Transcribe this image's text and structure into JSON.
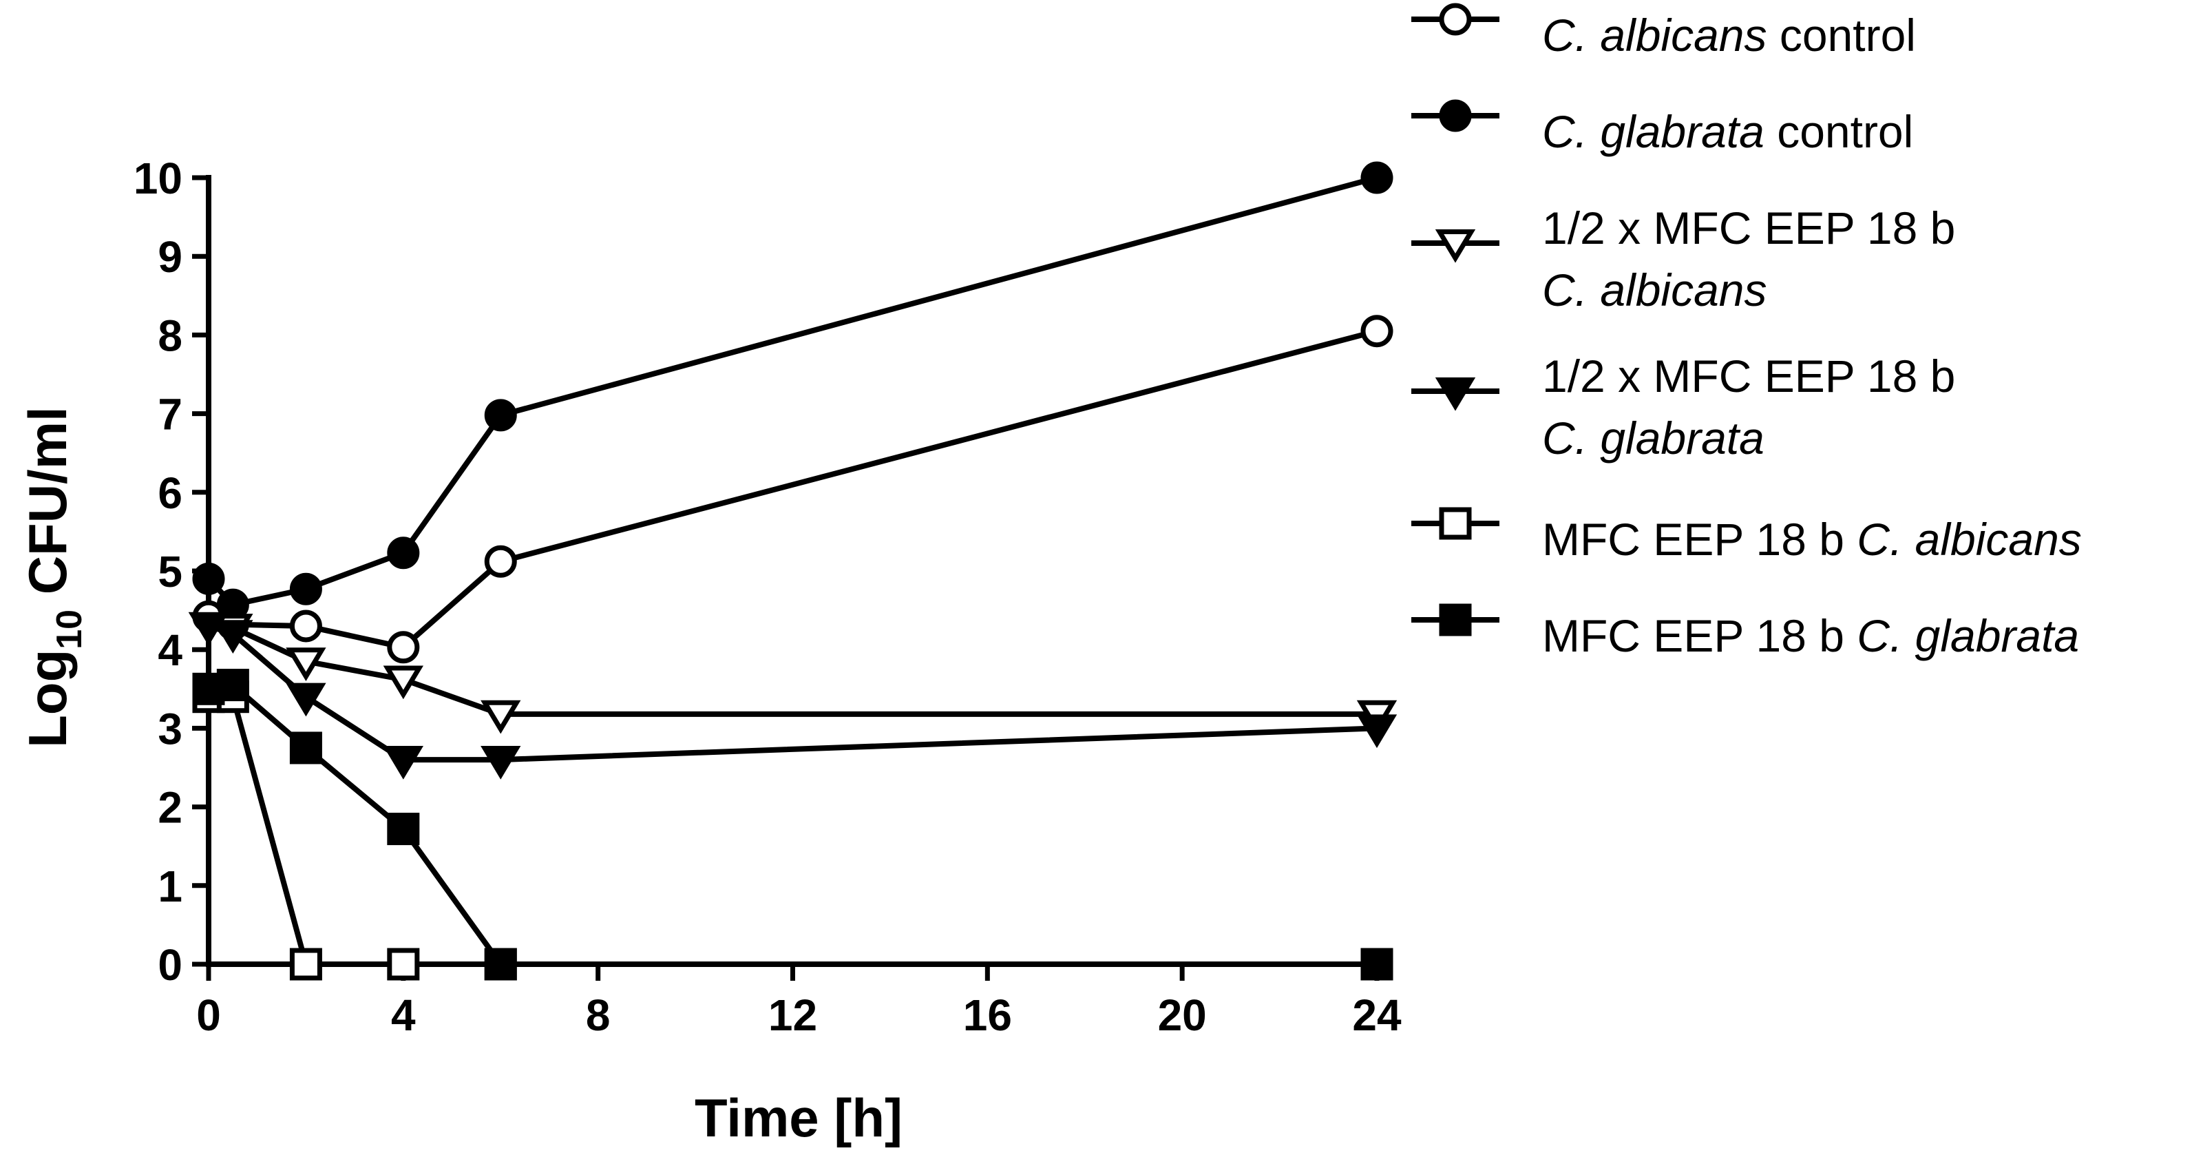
{
  "chart_data": {
    "type": "line",
    "title": "",
    "xlabel": "Time [h]",
    "ylabel": "Log₁₀ CFU/ml",
    "ylabel_parts": {
      "base": "Log",
      "sub": "10",
      "rest": " CFU/ml"
    },
    "xlim": [
      0,
      24
    ],
    "ylim": [
      0,
      10
    ],
    "xticks": [
      0,
      4,
      8,
      12,
      16,
      20,
      24
    ],
    "yticks": [
      0,
      1,
      2,
      3,
      4,
      5,
      6,
      7,
      8,
      9,
      10
    ],
    "grid": false,
    "legend_position": "right",
    "series": [
      {
        "name": "C. albicans control",
        "legend_lines": [
          [
            {
              "t": "C. albicans",
              "i": true
            },
            {
              "t": " control",
              "i": false
            }
          ]
        ],
        "marker": "circle",
        "filled": false,
        "x": [
          0,
          0.5,
          2,
          4,
          6,
          24
        ],
        "y": [
          4.42,
          4.32,
          4.3,
          4.03,
          5.12,
          8.05
        ]
      },
      {
        "name": "C. glabrata control",
        "legend_lines": [
          [
            {
              "t": "C. glabrata",
              "i": true
            },
            {
              "t": " control",
              "i": false
            }
          ]
        ],
        "marker": "circle",
        "filled": true,
        "x": [
          0,
          0.5,
          2,
          4,
          6,
          24
        ],
        "y": [
          4.9,
          4.57,
          4.77,
          5.23,
          6.98,
          10.0
        ]
      },
      {
        "name": "1/2 x MFC EEP 18 b C. albicans",
        "legend_lines": [
          [
            {
              "t": "1/2 x MFC EEP 18 b",
              "i": false
            }
          ],
          [
            {
              "t": "C. albicans",
              "i": true
            }
          ]
        ],
        "marker": "triangle-down",
        "filled": false,
        "x": [
          0,
          0.5,
          2,
          4,
          6,
          24
        ],
        "y": [
          4.3,
          4.28,
          3.85,
          3.62,
          3.18,
          3.18
        ]
      },
      {
        "name": "1/2 x MFC EEP 18 b C. glabrata",
        "legend_lines": [
          [
            {
              "t": "1/2 x MFC EEP 18 b",
              "i": false
            }
          ],
          [
            {
              "t": "C. glabrata",
              "i": true
            }
          ]
        ],
        "marker": "triangle-down",
        "filled": true,
        "x": [
          0,
          0.5,
          2,
          4,
          6,
          24
        ],
        "y": [
          4.3,
          4.2,
          3.4,
          2.6,
          2.6,
          3.0
        ]
      },
      {
        "name": "MFC EEP 18 b C. albicans",
        "legend_lines": [
          [
            {
              "t": "MFC EEP 18 b ",
              "i": false
            },
            {
              "t": "C. albicans",
              "i": true
            }
          ]
        ],
        "marker": "square",
        "filled": false,
        "x": [
          0,
          0.5,
          2,
          4,
          6,
          24
        ],
        "y": [
          3.4,
          3.4,
          0,
          0,
          0,
          0
        ]
      },
      {
        "name": "MFC EEP 18 b C. glabrata",
        "legend_lines": [
          [
            {
              "t": "MFC EEP 18 b ",
              "i": false
            },
            {
              "t": "C. glabrata",
              "i": true
            }
          ]
        ],
        "marker": "square",
        "filled": true,
        "x": [
          0,
          0.5,
          2,
          4,
          6,
          24
        ],
        "y": [
          3.5,
          3.55,
          2.75,
          1.72,
          0,
          0
        ]
      }
    ]
  },
  "colors": {
    "ink": "#000000",
    "background": "#ffffff"
  }
}
